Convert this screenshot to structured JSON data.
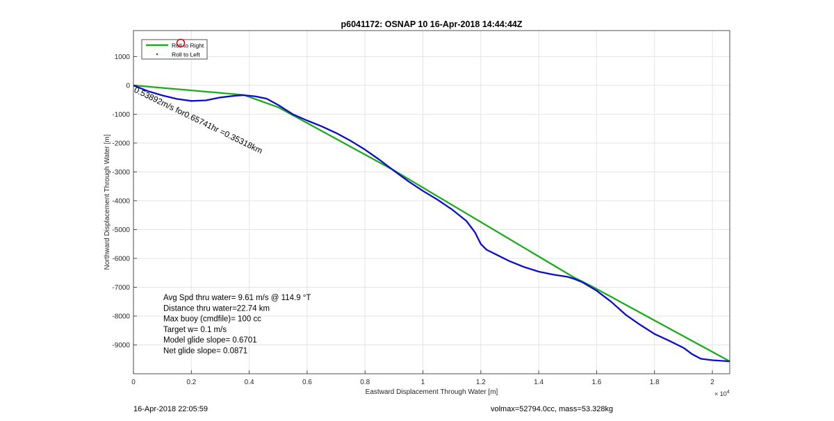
{
  "chart_data": {
    "type": "line",
    "title": "p6041172: OSNAP 10 16-Apr-2018 14:44:44Z",
    "xlabel": "Eastward Displacement Through Water [m]",
    "ylabel": "Northward Displacement Through Water [m]",
    "x_exponent_label": "× 10",
    "x_exponent_power": "4",
    "xlim": [
      0,
      2.06
    ],
    "ylim": [
      -10000,
      1900
    ],
    "x_ticks": [
      0,
      0.2,
      0.4,
      0.6,
      0.8,
      1,
      1.2,
      1.4,
      1.6,
      1.8,
      2
    ],
    "x_tick_labels": [
      "0",
      "0.2",
      "0.4",
      "0.6",
      "0.8",
      "1",
      "1.2",
      "1.4",
      "1.6",
      "1.8",
      "2"
    ],
    "y_ticks": [
      1000,
      0,
      -1000,
      -2000,
      -3000,
      -4000,
      -5000,
      -6000,
      -7000,
      -8000,
      -9000
    ],
    "y_tick_labels": [
      "1000",
      "0",
      "-1000",
      "-2000",
      "-3000",
      "-4000",
      "-5000",
      "-6000",
      "-7000",
      "-8000",
      "-9000"
    ],
    "grid": true,
    "legend_position": "top-left",
    "series": [
      {
        "name": "Roll to Right",
        "color": "#1aab1a",
        "style": "line",
        "x": [
          0,
          0.38,
          0.5,
          0.9,
          1.52,
          1.58,
          2.06
        ],
        "y": [
          0,
          -330,
          -760,
          -2950,
          -6650,
          -6950,
          -9570
        ]
      },
      {
        "name": "Roll to Left",
        "color": "#cc0000",
        "style": "points",
        "x": [],
        "y": []
      },
      {
        "name": "",
        "color": "#0a0ad0",
        "style": "line",
        "x": [
          0,
          0.05,
          0.1,
          0.15,
          0.2,
          0.25,
          0.3,
          0.35,
          0.38,
          0.42,
          0.46,
          0.5,
          0.55,
          0.6,
          0.65,
          0.7,
          0.75,
          0.8,
          0.85,
          0.9,
          0.95,
          1.0,
          1.05,
          1.1,
          1.15,
          1.18,
          1.2,
          1.22,
          1.25,
          1.3,
          1.35,
          1.4,
          1.45,
          1.5,
          1.52,
          1.55,
          1.6,
          1.65,
          1.7,
          1.75,
          1.8,
          1.85,
          1.9,
          1.93,
          1.96,
          2.0,
          2.06
        ],
        "y": [
          0,
          -200,
          -350,
          -470,
          -540,
          -520,
          -420,
          -360,
          -340,
          -380,
          -460,
          -680,
          -1000,
          -1220,
          -1420,
          -1650,
          -1920,
          -2230,
          -2580,
          -2960,
          -3330,
          -3660,
          -3960,
          -4300,
          -4700,
          -5100,
          -5500,
          -5700,
          -5850,
          -6100,
          -6300,
          -6460,
          -6560,
          -6640,
          -6700,
          -6820,
          -7120,
          -7500,
          -7950,
          -8300,
          -8620,
          -8850,
          -9100,
          -9320,
          -9480,
          -9530,
          -9570
        ]
      }
    ],
    "annotations": {
      "rotated": "0.53892m/s for0.65741hr =0.35318km",
      "stats": [
        "Avg Spd thru water=  9.61 m/s @ 114.9 °T",
        "Distance thru water=22.74 km",
        "Max buoy (cmdfile)= 100 cc",
        "Target w= 0.1 m/s",
        "Model glide slope= 0.6701",
        "Net glide slope= 0.0871"
      ]
    }
  },
  "footer": {
    "left": "16-Apr-2018 22:05:59",
    "right": "volmax=52794.0cc, mass=53.328kg"
  }
}
